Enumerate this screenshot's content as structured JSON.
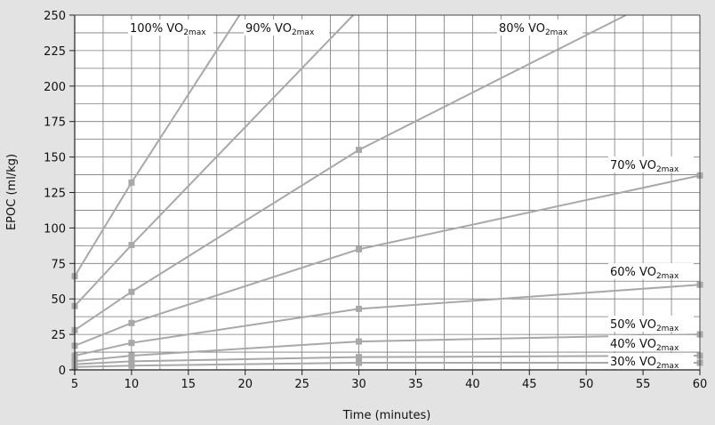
{
  "chart_data": {
    "type": "line",
    "title": "",
    "xlabel": "Time (minutes)",
    "ylabel": "EPOC (ml/kg)",
    "xlim": [
      5,
      60
    ],
    "ylim": [
      0,
      250
    ],
    "x_ticks": [
      5,
      10,
      15,
      20,
      25,
      30,
      35,
      40,
      45,
      50,
      55,
      60
    ],
    "y_ticks": [
      0,
      25,
      50,
      75,
      100,
      125,
      150,
      175,
      200,
      225,
      250
    ],
    "grid": true,
    "legend": "none",
    "colors": {
      "background": "#e3e3e3",
      "plot": "#ffffff",
      "grid": "#7a7a7a",
      "series": "#a8a8a8",
      "marker": "#a8a8a8"
    },
    "series": [
      {
        "label_base": "100% VO",
        "label_sub": "2max",
        "x": [
          5,
          10,
          19.5
        ],
        "y": [
          66,
          132,
          250
        ]
      },
      {
        "label_base": "90% VO",
        "label_sub": "2max",
        "x": [
          5,
          10,
          29.5
        ],
        "y": [
          45,
          88,
          250
        ]
      },
      {
        "label_base": "80% VO",
        "label_sub": "2max",
        "x": [
          5,
          10,
          30,
          53.5
        ],
        "y": [
          28,
          55,
          155,
          250
        ]
      },
      {
        "label_base": "70% VO",
        "label_sub": "2max",
        "x": [
          5,
          10,
          30,
          60
        ],
        "y": [
          17,
          33,
          85,
          137
        ]
      },
      {
        "label_base": "60% VO",
        "label_sub": "2max",
        "x": [
          5,
          10,
          30,
          60
        ],
        "y": [
          10,
          19,
          43,
          60
        ]
      },
      {
        "label_base": "50% VO",
        "label_sub": "2max",
        "x": [
          5,
          10,
          30,
          60
        ],
        "y": [
          6,
          10,
          20,
          25
        ]
      },
      {
        "label_base": "40% VO",
        "label_sub": "2max",
        "x": [
          5,
          10,
          30,
          60
        ],
        "y": [
          4,
          6,
          9,
          10
        ]
      },
      {
        "label_base": "30% VO",
        "label_sub": "2max",
        "x": [
          5,
          10,
          30,
          60
        ],
        "y": [
          2,
          3,
          5,
          5
        ]
      }
    ],
    "markers": [
      {
        "x": 5,
        "y": 66
      },
      {
        "x": 10,
        "y": 132
      },
      {
        "x": 5,
        "y": 45
      },
      {
        "x": 10,
        "y": 88
      },
      {
        "x": 5,
        "y": 28
      },
      {
        "x": 10,
        "y": 55
      },
      {
        "x": 30,
        "y": 155
      },
      {
        "x": 5,
        "y": 17
      },
      {
        "x": 10,
        "y": 33
      },
      {
        "x": 30,
        "y": 85
      },
      {
        "x": 60,
        "y": 137
      },
      {
        "x": 5,
        "y": 10
      },
      {
        "x": 10,
        "y": 19
      },
      {
        "x": 30,
        "y": 43
      },
      {
        "x": 60,
        "y": 60
      },
      {
        "x": 5,
        "y": 6
      },
      {
        "x": 10,
        "y": 10
      },
      {
        "x": 30,
        "y": 20
      },
      {
        "x": 60,
        "y": 25
      },
      {
        "x": 5,
        "y": 4
      },
      {
        "x": 10,
        "y": 6
      },
      {
        "x": 30,
        "y": 9
      },
      {
        "x": 60,
        "y": 10
      },
      {
        "x": 5,
        "y": 2
      },
      {
        "x": 10,
        "y": 3
      },
      {
        "x": 30,
        "y": 5
      },
      {
        "x": 60,
        "y": 5
      }
    ]
  }
}
